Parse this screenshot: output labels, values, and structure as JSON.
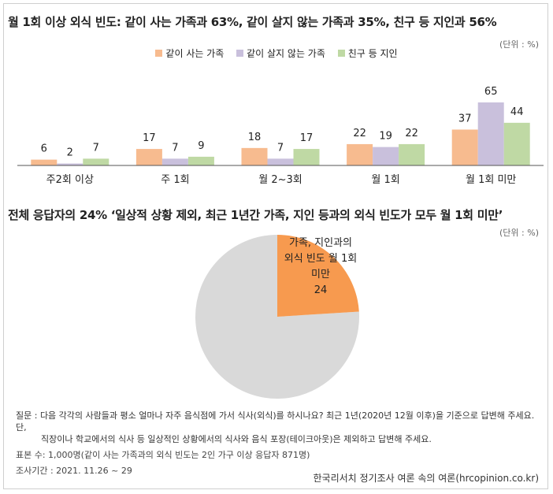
{
  "chart_data": [
    {
      "type": "bar",
      "title": "월 1회 이상 외식 빈도: 같이 사는 가족과 63%, 같이 살지 않는 가족과 35%, 친구 등 지인과 56%",
      "unit": "(단위 : %)",
      "categories": [
        "주2회 이상",
        "주 1회",
        "월 2~3회",
        "월 1회",
        "월 1회 미만"
      ],
      "series": [
        {
          "name": "같이 사는 가족",
          "color": "#f7bb8f",
          "values": [
            6,
            17,
            18,
            22,
            37
          ]
        },
        {
          "name": "같이 살지 않는 가족",
          "color": "#c9c0dc",
          "values": [
            2,
            7,
            7,
            19,
            65
          ]
        },
        {
          "name": "친구 등 지인",
          "color": "#bfd9a4",
          "values": [
            7,
            9,
            17,
            22,
            44
          ]
        }
      ],
      "ylim": [
        0,
        70
      ],
      "legend": "top-center",
      "grid": false
    },
    {
      "type": "pie",
      "title": "전체 응답자의 24% ‘일상적 상황 제외, 최근 1년간 가족, 지인 등과의 외식 빈도가 모두 월 1회 미만’",
      "unit": "(단위 : %)",
      "slices": [
        {
          "label_lines": [
            "가족, 지인과의",
            "외식 빈도 월 1회",
            "미만"
          ],
          "value": 24,
          "color": "#f79a4f"
        },
        {
          "label_lines": [],
          "value": 76,
          "color": "#d9d9d9"
        }
      ]
    }
  ],
  "footnotes": {
    "question_line1": "질문 : 다음 각각의 사람들과 평소 얼마나 자주 음식점에 가서 식사(외식)를 하시나요? 최근 1년(2020년 12월 이후)을 기준으로 답변해 주세요. 단,",
    "question_line2": "직장이나 학교에서의 식사 등 일상적인 상황에서의 식사와 음식 포장(테이크아웃)은 제외하고 답변해 주세요.",
    "sample": "표본 수: 1,000명(같이 사는 가족과의 외식 빈도는 2인 가구 이상 응답자 871명)",
    "period": "조사기간 : 2021. 11.26 ~ 29"
  },
  "source": "한국리서치 정기조사 여론 속의 여론(hrcopinion.co.kr)"
}
